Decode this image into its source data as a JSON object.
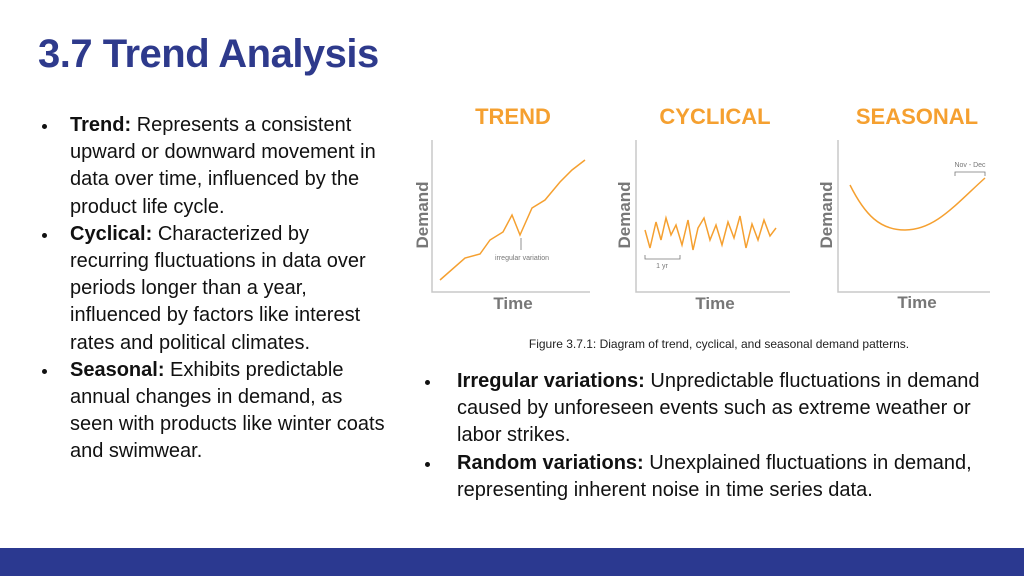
{
  "title": "3.7 Trend Analysis",
  "left_bullets": [
    {
      "term": "Trend:",
      "text": "Represents a consistent upward or downward movement in data over time, influenced by the product life cycle."
    },
    {
      "term": "Cyclical:",
      "text": "Characterized by recurring fluctuations in data over periods longer than a year, influenced by factors like interest rates and political climates."
    },
    {
      "term": "Seasonal:",
      "text": "Exhibits predictable annual changes in demand, as seen with products like winter coats and swimwear."
    }
  ],
  "figure": {
    "panels": [
      {
        "title": "TREND",
        "y_label": "Demand",
        "x_label": "Time",
        "annotation": "irregular variation"
      },
      {
        "title": "CYCLICAL",
        "y_label": "Demand",
        "x_label": "Time",
        "annotation": "1 yr"
      },
      {
        "title": "SEASONAL",
        "y_label": "Demand",
        "x_label": "Time",
        "annotation": "Nov - Dec"
      }
    ],
    "caption": "Figure 3.7.1: Diagram of trend, cyclical, and seasonal demand patterns."
  },
  "right_bullets": [
    {
      "term": "Irregular variations:",
      "text": "Unpredictable fluctuations in demand caused by unforeseen events such as extreme weather or labor strikes."
    },
    {
      "term": "Random variations:",
      "text": "Unexplained fluctuations in demand, representing inherent noise in time series data."
    }
  ]
}
